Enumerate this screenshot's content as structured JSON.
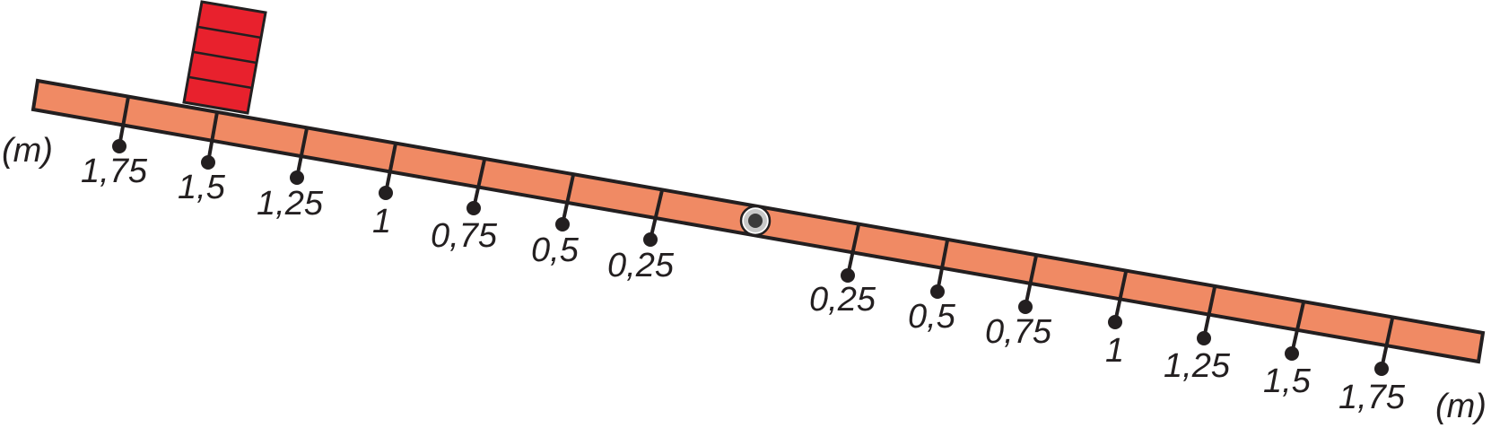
{
  "unit_label": "(m)",
  "left_marks": [
    "1,75",
    "1,5",
    "1,25",
    "1",
    "0,75",
    "0,5",
    "0,25"
  ],
  "right_marks": [
    "0,25",
    "0,5",
    "0,75",
    "1",
    "1,25",
    "1,5",
    "1,75"
  ],
  "colors": {
    "beam": "#f08a64",
    "block": "#e8212d",
    "stroke": "#231f20",
    "pivot_ring": "#c8c8c8",
    "pivot_core": "#3a3a3a"
  }
}
